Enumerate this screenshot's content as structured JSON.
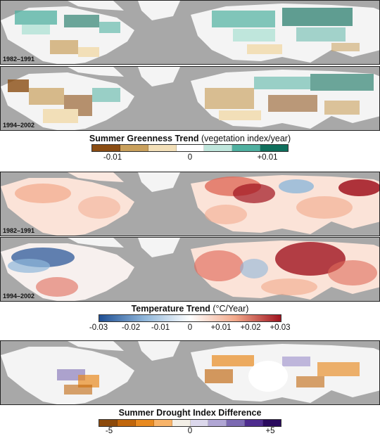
{
  "sections": [
    {
      "id": "greenness",
      "panels": [
        {
          "period": "1982–1991",
          "pattern": "greenness-1"
        },
        {
          "period": "1994–2002",
          "pattern": "greenness-2"
        }
      ],
      "legend": {
        "title_bold": "Summer Greenness Trend",
        "title_rest": " (vegetation index/year)",
        "ticks": [
          "-0.01",
          "0",
          "+0.01"
        ],
        "swatches": [
          "#8a4c12",
          "#c9a05c",
          "#f2dfb8",
          "#ffffff",
          "#bfe6dc",
          "#4fb0a0",
          "#0f6f5c"
        ]
      }
    },
    {
      "id": "temperature",
      "panels": [
        {
          "period": "1982–1991",
          "pattern": "temperature-1"
        },
        {
          "period": "1994–2002",
          "pattern": "temperature-2"
        }
      ],
      "legend": {
        "title_bold": "Temperature Trend",
        "title_rest": " (°C/Year)",
        "ticks": [
          "-0.03",
          "-0.02",
          "-0.01",
          "0",
          "+0.01",
          "+0.02",
          "+0.03"
        ],
        "gradient": [
          "#1f4f94",
          "#8fb6da",
          "#ffffff",
          "#f2a88a",
          "#a0131f"
        ]
      }
    },
    {
      "id": "drought",
      "panels": [
        {
          "period": "",
          "pattern": "drought"
        }
      ],
      "legend": {
        "title_bold": "Summer Drought Index Difference",
        "title_rest": "",
        "ticks": [
          "-5",
          "0",
          "+5"
        ],
        "swatches": [
          "#8c4a0c",
          "#c0660c",
          "#e88a20",
          "#f8b46a",
          "#f3efe6",
          "#dcd8ec",
          "#b0a6d4",
          "#7c6ab2",
          "#4e2c8e",
          "#2a0a5e"
        ]
      }
    }
  ],
  "colors": {
    "ocean": "#a8a8a8",
    "land_base": "#f4f4f4"
  }
}
